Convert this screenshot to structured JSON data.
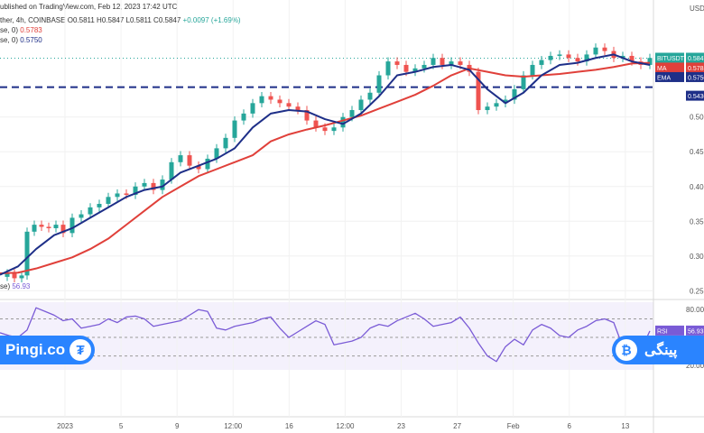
{
  "header": {
    "published": "ublished on TradingView.com, Feb 12, 2023 17:42 UTC",
    "symbol": "ther, 4h, COINBASE",
    "ohlc": "O0.5811 H0.5847 L0.5811 C0.5847",
    "change": "+0.0097 (+1.69%)",
    "ma_label": "se, 0)",
    "ma_value": "0.5783",
    "ema_label": "se, 0)",
    "ema_value": "0.5750",
    "rsi_label": "se)",
    "rsi_value": "56.93"
  },
  "colors": {
    "price": "#1e2f88",
    "up_candle": "#26a69a",
    "down_candle": "#ef5350",
    "ma": "#e0403a",
    "ema": "#1e2f88",
    "rsi": "#7a5bd6",
    "badge": "#2a84ff"
  },
  "badges": {
    "price": {
      "label": "BITUSDT",
      "value": "0.5847",
      "sub": "02:17"
    },
    "ma": {
      "label": "MA",
      "value": "0.5783"
    },
    "ema": {
      "label": "EMA",
      "value": "0.5750"
    },
    "support": {
      "value": "0.5430"
    },
    "rsi": {
      "label": "RSI",
      "value": "56.93"
    },
    "currency": "USDT"
  },
  "logos": {
    "left_text": "Pingi.co",
    "left_icon": "tether-icon",
    "right_text": "پینگی",
    "right_icon": "bitcoin-icon"
  },
  "chart_data": [
    {
      "type": "line",
      "title": "",
      "currency": "USDT",
      "ylim": [
        0.24,
        0.61
      ],
      "y_ticks": [
        0.25,
        0.3,
        0.35,
        0.4,
        0.45,
        0.5
      ],
      "x_tick_labels": [
        "2023",
        "5",
        "9",
        "12:00",
        "16",
        "12:00",
        "23",
        "27",
        "Feb",
        "6",
        "13"
      ],
      "support_level": 0.543,
      "resistance_level": 0.5847,
      "series": [
        {
          "name": "BITUSDT",
          "x": [
            0,
            8,
            16,
            24,
            30,
            38,
            46,
            54,
            62,
            70,
            80,
            90,
            100,
            110,
            120,
            130,
            140,
            150,
            160,
            170,
            180,
            190,
            200,
            210,
            220,
            230,
            240,
            250,
            260,
            270,
            280,
            290,
            300,
            310,
            320,
            330,
            340,
            350,
            360,
            370,
            380,
            390,
            400,
            410,
            420,
            430,
            440,
            450,
            460,
            470,
            480,
            490,
            500,
            510,
            520,
            530,
            540,
            550,
            560,
            570,
            580,
            590,
            600,
            610,
            620,
            630,
            640,
            650,
            660,
            670,
            680,
            690,
            700,
            710,
            720
          ],
          "values": [
            0.27,
            0.275,
            0.268,
            0.272,
            0.335,
            0.345,
            0.342,
            0.34,
            0.345,
            0.333,
            0.355,
            0.36,
            0.37,
            0.375,
            0.385,
            0.39,
            0.388,
            0.4,
            0.405,
            0.395,
            0.41,
            0.435,
            0.445,
            0.43,
            0.425,
            0.44,
            0.455,
            0.47,
            0.495,
            0.505,
            0.52,
            0.53,
            0.525,
            0.52,
            0.515,
            0.51,
            0.495,
            0.485,
            0.48,
            0.485,
            0.5,
            0.51,
            0.525,
            0.535,
            0.56,
            0.58,
            0.575,
            0.565,
            0.57,
            0.575,
            0.585,
            0.575,
            0.58,
            0.575,
            0.565,
            0.51,
            0.515,
            0.52,
            0.525,
            0.54,
            0.56,
            0.575,
            0.582,
            0.588,
            0.59,
            0.585,
            0.58,
            0.59,
            0.6,
            0.595,
            0.585,
            0.588,
            0.58,
            0.575,
            0.585
          ]
        },
        {
          "name": "MA",
          "x": [
            0,
            20,
            40,
            60,
            80,
            100,
            120,
            140,
            160,
            180,
            200,
            220,
            240,
            260,
            280,
            300,
            320,
            340,
            360,
            380,
            400,
            420,
            440,
            460,
            480,
            500,
            520,
            540,
            560,
            580,
            600,
            620,
            640,
            660,
            680,
            700,
            720
          ],
          "values": [
            0.275,
            0.276,
            0.282,
            0.29,
            0.298,
            0.31,
            0.325,
            0.345,
            0.365,
            0.385,
            0.4,
            0.415,
            0.425,
            0.435,
            0.445,
            0.465,
            0.475,
            0.482,
            0.488,
            0.495,
            0.502,
            0.512,
            0.522,
            0.532,
            0.545,
            0.56,
            0.57,
            0.565,
            0.56,
            0.558,
            0.56,
            0.562,
            0.565,
            0.568,
            0.572,
            0.577,
            0.578
          ]
        },
        {
          "name": "EMA",
          "x": [
            0,
            20,
            40,
            60,
            80,
            100,
            120,
            140,
            160,
            180,
            200,
            220,
            240,
            260,
            280,
            300,
            320,
            340,
            360,
            380,
            400,
            420,
            440,
            460,
            480,
            500,
            520,
            540,
            560,
            580,
            600,
            620,
            640,
            660,
            680,
            700,
            720
          ],
          "values": [
            0.273,
            0.285,
            0.31,
            0.33,
            0.34,
            0.355,
            0.37,
            0.385,
            0.395,
            0.4,
            0.42,
            0.43,
            0.44,
            0.455,
            0.485,
            0.505,
            0.51,
            0.508,
            0.497,
            0.49,
            0.505,
            0.53,
            0.56,
            0.565,
            0.572,
            0.575,
            0.568,
            0.54,
            0.52,
            0.535,
            0.56,
            0.575,
            0.578,
            0.585,
            0.59,
            0.58,
            0.575
          ]
        }
      ]
    },
    {
      "type": "line",
      "title": "",
      "ylim": [
        15,
        88
      ],
      "y_ticks": [
        20.0,
        80.0
      ],
      "guide_levels": [
        70,
        50,
        30
      ],
      "series": [
        {
          "name": "RSI",
          "x": [
            0,
            10,
            20,
            30,
            40,
            50,
            60,
            70,
            80,
            90,
            100,
            110,
            120,
            130,
            140,
            150,
            160,
            170,
            180,
            190,
            200,
            210,
            220,
            230,
            240,
            250,
            260,
            270,
            280,
            290,
            300,
            310,
            320,
            330,
            340,
            350,
            360,
            370,
            380,
            390,
            400,
            410,
            420,
            430,
            440,
            450,
            460,
            470,
            480,
            490,
            500,
            510,
            520,
            530,
            540,
            550,
            560,
            570,
            580,
            590,
            600,
            610,
            620,
            630,
            640,
            650,
            660,
            670,
            680,
            690,
            700,
            710,
            720
          ],
          "values": [
            55,
            52,
            50,
            58,
            82,
            78,
            74,
            68,
            70,
            60,
            62,
            64,
            70,
            66,
            72,
            73,
            70,
            62,
            64,
            66,
            68,
            74,
            80,
            78,
            60,
            58,
            62,
            64,
            66,
            70,
            72,
            60,
            50,
            56,
            62,
            68,
            64,
            42,
            44,
            46,
            50,
            60,
            64,
            62,
            68,
            72,
            76,
            70,
            62,
            64,
            66,
            72,
            60,
            44,
            30,
            24,
            40,
            48,
            42,
            58,
            64,
            60,
            52,
            50,
            58,
            62,
            68,
            70,
            66,
            40,
            32,
            36,
            57
          ]
        }
      ]
    }
  ]
}
